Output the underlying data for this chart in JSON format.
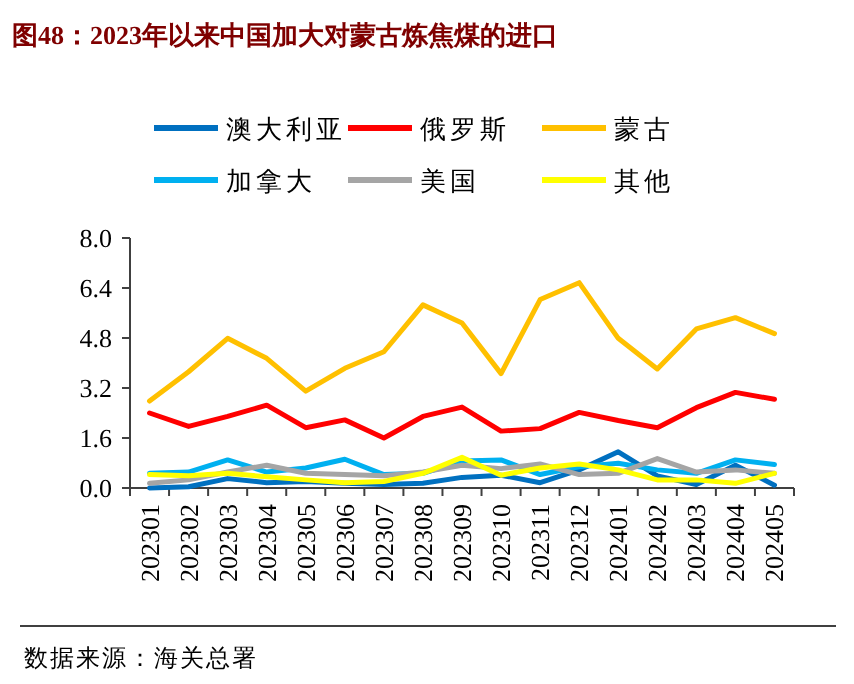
{
  "chart_data": {
    "type": "line",
    "title": "图48：2023年以来中国加大对蒙古炼焦煤的进口",
    "categories": [
      "202301",
      "202302",
      "202303",
      "202304",
      "202305",
      "202306",
      "202307",
      "202308",
      "202309",
      "202310",
      "202311",
      "202312",
      "202401",
      "202402",
      "202403",
      "202404",
      "202405"
    ],
    "series": [
      {
        "name": "澳大利亚",
        "color": "#0070c0",
        "values": [
          0.0,
          0.04,
          0.3,
          0.17,
          0.21,
          0.15,
          0.11,
          0.15,
          0.34,
          0.41,
          0.17,
          0.58,
          1.16,
          0.39,
          0.11,
          0.73,
          0.09
        ]
      },
      {
        "name": "俄罗斯",
        "color": "#ff0000",
        "values": [
          2.4,
          1.97,
          2.29,
          2.65,
          1.93,
          2.18,
          1.6,
          2.29,
          2.59,
          1.82,
          1.9,
          2.42,
          2.16,
          1.93,
          2.57,
          3.06,
          2.84
        ]
      },
      {
        "name": "蒙古",
        "color": "#ffc000",
        "values": [
          2.78,
          3.72,
          4.79,
          4.15,
          3.1,
          3.83,
          4.36,
          5.86,
          5.28,
          3.66,
          6.03,
          6.57,
          4.79,
          3.81,
          5.09,
          5.45,
          4.94
        ]
      },
      {
        "name": "加拿大",
        "color": "#00b0f0",
        "values": [
          0.47,
          0.51,
          0.9,
          0.51,
          0.64,
          0.92,
          0.43,
          0.47,
          0.86,
          0.9,
          0.43,
          0.68,
          0.79,
          0.58,
          0.47,
          0.9,
          0.75
        ]
      },
      {
        "name": "美国",
        "color": "#a5a5a5",
        "values": [
          0.15,
          0.26,
          0.51,
          0.73,
          0.47,
          0.43,
          0.39,
          0.51,
          0.73,
          0.62,
          0.77,
          0.43,
          0.47,
          0.94,
          0.51,
          0.58,
          0.47
        ]
      },
      {
        "name": "其他",
        "color": "#ffff00",
        "values": [
          0.43,
          0.39,
          0.47,
          0.36,
          0.26,
          0.17,
          0.21,
          0.47,
          0.98,
          0.41,
          0.64,
          0.77,
          0.58,
          0.26,
          0.26,
          0.15,
          0.47
        ]
      }
    ],
    "ylim": [
      0,
      8
    ],
    "yticks": [
      {
        "value": 0,
        "label": "0.0"
      },
      {
        "value": 1.6,
        "label": "1.6"
      },
      {
        "value": 3.2,
        "label": "3.2"
      },
      {
        "value": 4.8,
        "label": "4.8"
      },
      {
        "value": 6.4,
        "label": "6.4"
      },
      {
        "value": 8,
        "label": "8.0"
      }
    ],
    "legend": "top",
    "annotations": [
      "数据来源：海关总署"
    ]
  }
}
